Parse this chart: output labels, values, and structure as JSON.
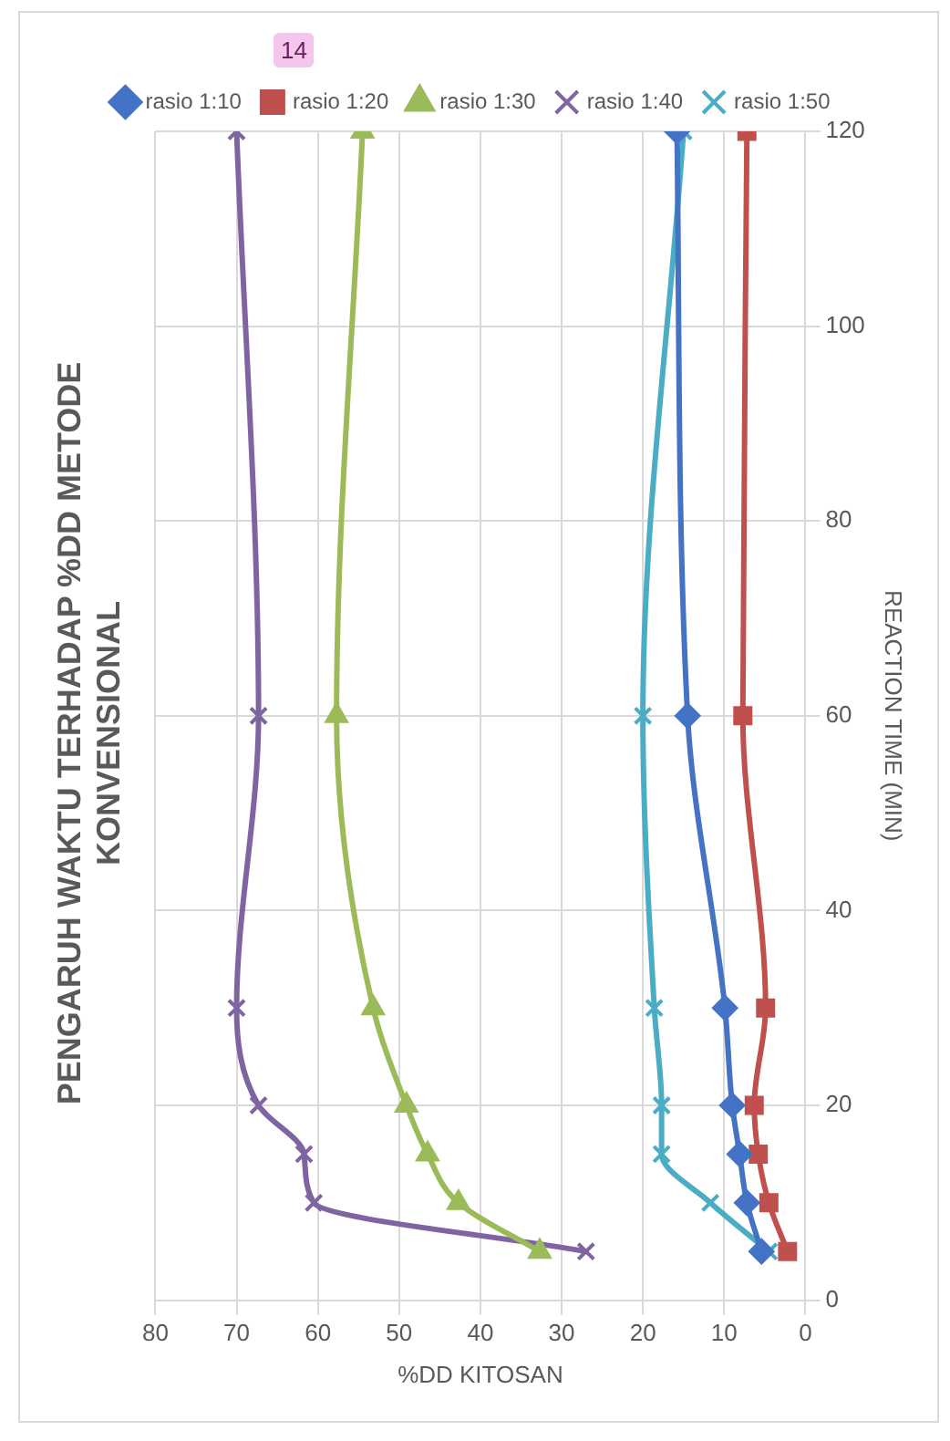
{
  "chart_data": {
    "type": "line",
    "title": "PENGARUH WAKTU TERHADAP %DD METODE\nKONVENSIONAL",
    "xlabel": "%DD KITOSAN",
    "ylabel": "REACTION TIME (MIN)",
    "annotations": [
      "14"
    ],
    "series": [
      {
        "name": "rasio 1:10",
        "color": "#4472c4",
        "marker": "diamond",
        "x": [
          5.4,
          7.2,
          8.1,
          9,
          9.9,
          14.5,
          15.8
        ],
        "values": [
          5,
          10,
          15,
          20,
          30,
          60,
          120
        ]
      },
      {
        "name": "rasio 1:20",
        "color": "#c0504d",
        "marker": "square",
        "x": [
          2.2,
          4.5,
          5.8,
          6.3,
          4.9,
          7.7,
          7.2
        ],
        "values": [
          5,
          10,
          15,
          20,
          30,
          60,
          120
        ]
      },
      {
        "name": "rasio 1:30",
        "color": "#9bbb59",
        "marker": "triangle",
        "x": [
          32.7,
          42.7,
          46.5,
          49.1,
          53.2,
          57.7,
          54.5
        ],
        "values": [
          5,
          10,
          15,
          20,
          30,
          60,
          120
        ]
      },
      {
        "name": "rasio 1:40",
        "color": "#8064a2",
        "marker": "cross",
        "x": [
          27,
          60.5,
          61.7,
          67.3,
          70,
          67.3,
          70
        ],
        "values": [
          5,
          10,
          15,
          20,
          30,
          60,
          120
        ]
      },
      {
        "name": "rasio 1:50",
        "color": "#4bacc6",
        "marker": "cross",
        "x": [
          4.5,
          11.7,
          17.7,
          17.7,
          18.6,
          20,
          15
        ],
        "values": [
          5,
          10,
          15,
          20,
          30,
          60,
          120
        ]
      }
    ],
    "xlim": [
      80,
      0
    ],
    "xticks": [
      80,
      70,
      60,
      50,
      40,
      30,
      20,
      10,
      0
    ],
    "ylim": [
      0,
      120
    ],
    "yticks": [
      0,
      20,
      40,
      60,
      80,
      100,
      120
    ],
    "grid": true,
    "legend": "top",
    "line_style": "solid"
  }
}
